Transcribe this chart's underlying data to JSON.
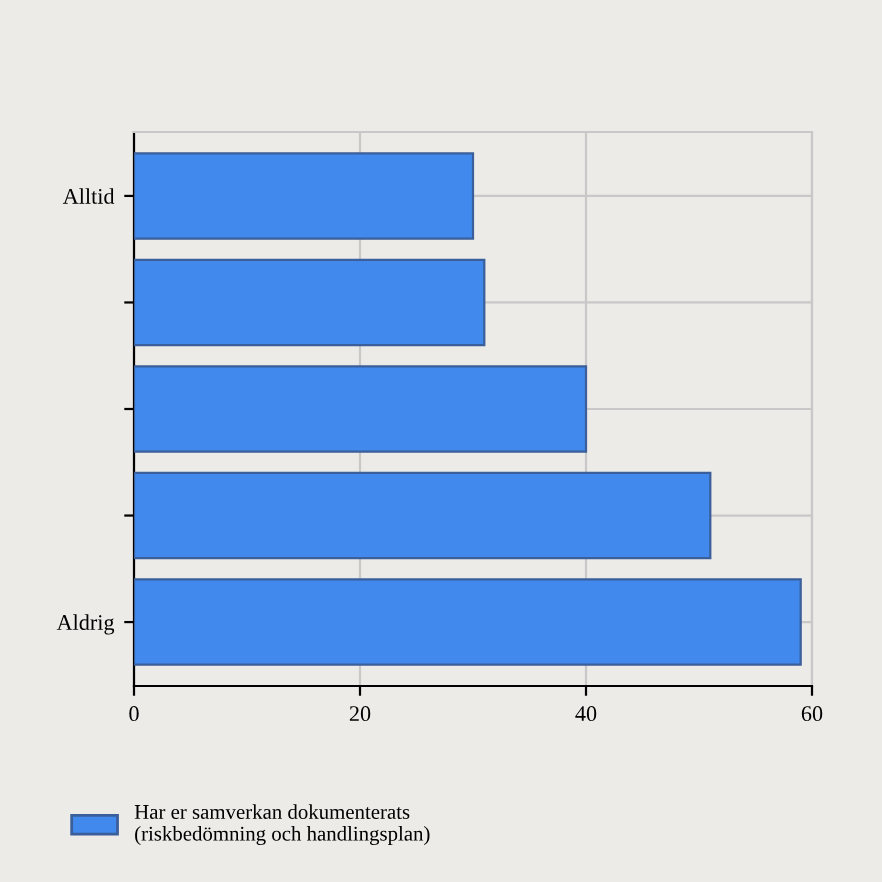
{
  "chart_data": {
    "type": "bar",
    "orientation": "horizontal",
    "categories": [
      "Alltid",
      null,
      null,
      null,
      "Aldrig"
    ],
    "series": [
      {
        "name": "Har er samverkan dokumenterats\n(riskbedömning och handlingsplan)",
        "color": "#4189ec",
        "values": [
          30,
          31,
          40,
          51,
          59
        ]
      }
    ],
    "xlim": [
      0,
      60
    ],
    "xticks": [
      0,
      20,
      40,
      60
    ],
    "grid": true,
    "legend": "bottom left"
  }
}
